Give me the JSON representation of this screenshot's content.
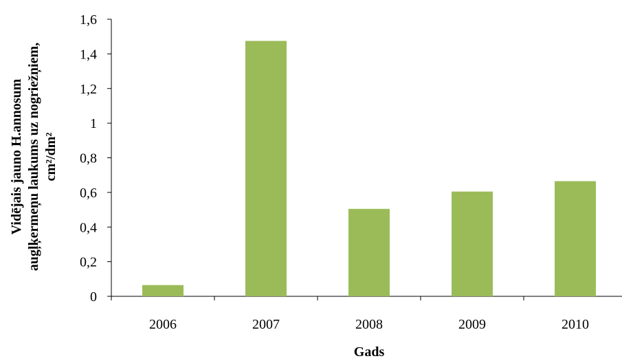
{
  "chart_data": {
    "type": "bar",
    "categories": [
      "2006",
      "2007",
      "2008",
      "2009",
      "2010"
    ],
    "values": [
      0.065,
      1.475,
      0.505,
      0.605,
      0.665
    ],
    "xlabel": "Gads",
    "ylabel_lines": [
      "Vidējais jauno H.annosum",
      "augļķermeņu laukums uz nogriežņiem,",
      "cm²/dm²"
    ],
    "ylim": [
      0,
      1.6
    ],
    "yticks": [
      "0",
      "0,2",
      "0,4",
      "0,6",
      "0,8",
      "1",
      "1,2",
      "1,4",
      "1,6"
    ],
    "grid": false,
    "bar_color": "#9bbb59",
    "axis_color": "#000000"
  }
}
